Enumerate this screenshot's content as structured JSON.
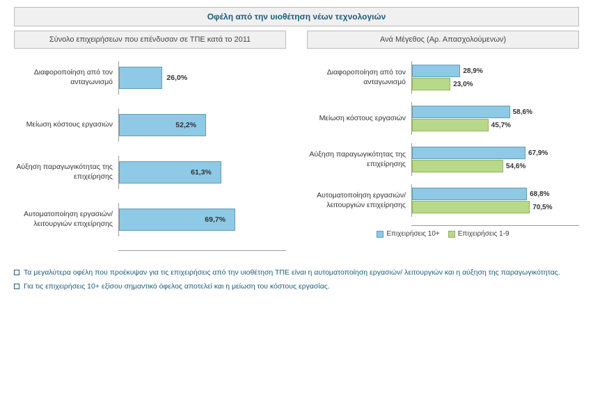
{
  "title": "Οφέλη από την υιοθέτηση νέων τεχνολογιών",
  "left": {
    "subtitle": "Σύνολο επιχειρήσεων που επένδυσαν σε ΤΠΕ κατά το 2011",
    "type": "bar",
    "color": "#8ecae6",
    "border": "#5f9bb5",
    "max": 100,
    "categories": [
      {
        "label": "Διαφοροποίηση από τον ανταγωνισμό",
        "value": 26.0,
        "text": "26,0%"
      },
      {
        "label": "Μείωση  κόστους εργασιών",
        "value": 52.2,
        "text": "52,2%"
      },
      {
        "label": "Αύξηση παραγωγικότητας της επιχείρησης",
        "value": 61.3,
        "text": "61,3%"
      },
      {
        "label": "Αυτοματοποίηση εργασιών/ λειτουργιών επιχείρησης",
        "value": 69.7,
        "text": "69,7%"
      }
    ]
  },
  "right": {
    "subtitle": "Ανά Μέγεθος (Αρ. Απασχολούμενων)",
    "type": "grouped-bar",
    "max": 100,
    "series": [
      {
        "name": "Επιχειρήσεις 10+",
        "color": "#8ecae6",
        "border": "#5f9bb5"
      },
      {
        "name": "Επιχειρήσεις 1-9",
        "color": "#b8d98a",
        "border": "#8fb25d"
      }
    ],
    "categories": [
      {
        "label": "Διαφοροποίηση από τον ανταγωνισμό",
        "values": [
          28.9,
          23.0
        ],
        "texts": [
          "28,9%",
          "23,0%"
        ]
      },
      {
        "label": "Μείωση  κόστους εργασιών",
        "values": [
          58.6,
          45.7
        ],
        "texts": [
          "58,6%",
          "45,7%"
        ]
      },
      {
        "label": "Αύξηση παραγωγικότητας της επιχείρησης",
        "values": [
          67.9,
          54.6
        ],
        "texts": [
          "67,9%",
          "54,6%"
        ]
      },
      {
        "label": "Αυτοματοποίηση εργασιών/ λειτουργιών επιχείρησης",
        "values": [
          68.8,
          70.5
        ],
        "texts": [
          "68,8%",
          "70,5%"
        ]
      }
    ]
  },
  "bullets": [
    "Τα μεγαλύτερα οφέλη που προέκυψαν για τις επιχειρήσεις από την υιοθέτηση ΤΠΕ είναι η αυτοματοποίηση εργασιών/ λειτουργιών και η αύξηση της παραγωγικότητας.",
    "Για τις επιχειρήσεις 10+ εξίσου σημαντικό όφελος αποτελεί και η μείωση του κόστους εργασίας."
  ],
  "styling": {
    "title_color": "#1a5a7a",
    "subtitle_bg": "#f0f0f0",
    "subtitle_border": "#bbbbbb",
    "text_color": "#333333",
    "axis_color": "#999999",
    "background": "#ffffff",
    "title_fontsize": 12,
    "label_fontsize": 10.5,
    "font_family": "Arial"
  }
}
